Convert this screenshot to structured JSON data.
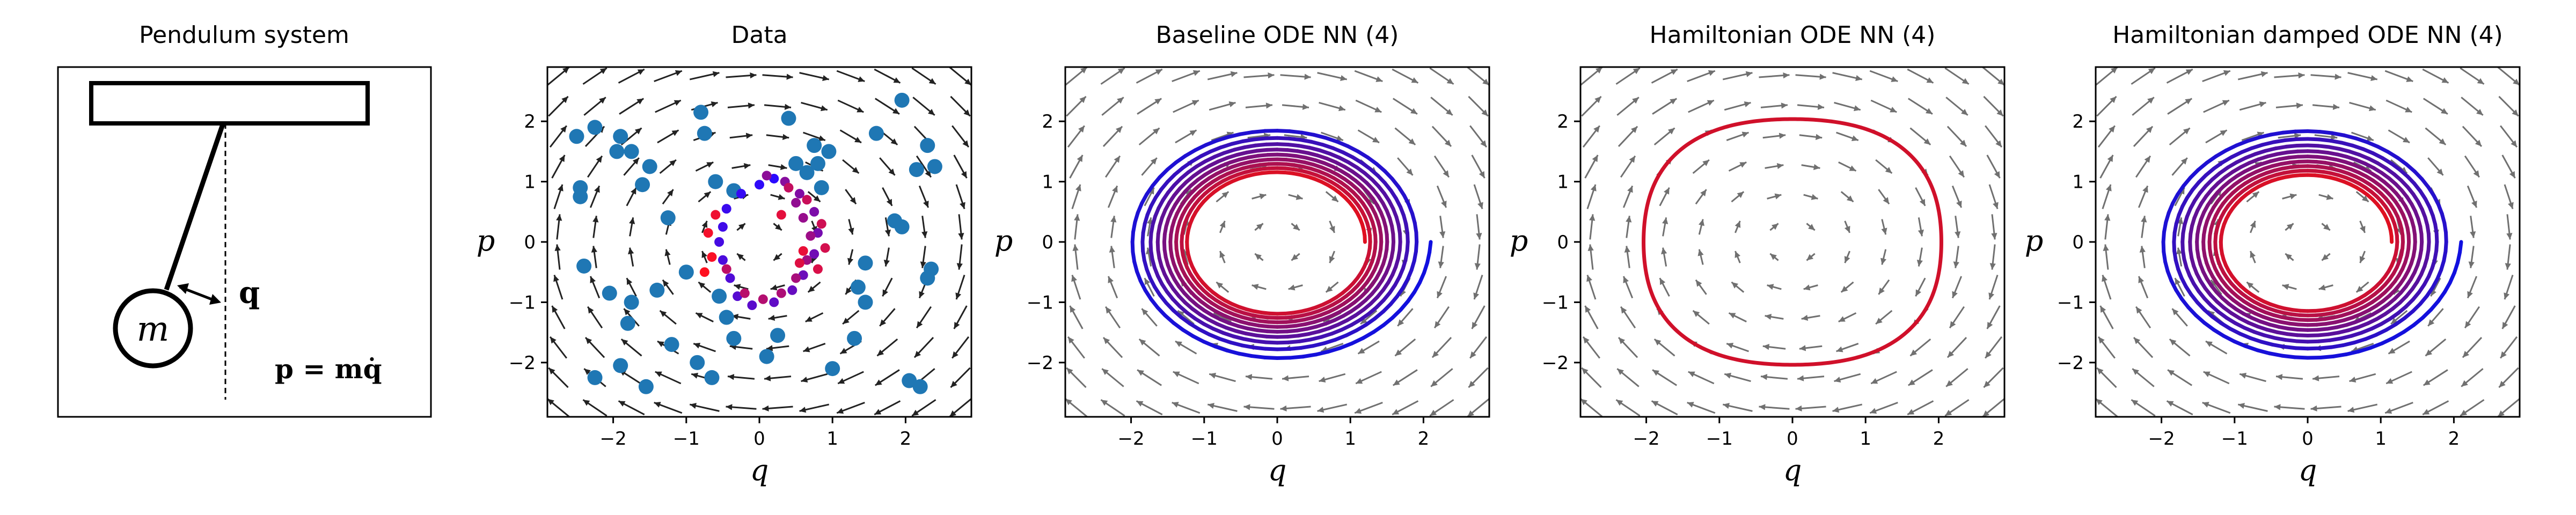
{
  "chart_data": [
    {
      "type": "diagram",
      "title": "Pendulum system",
      "labels": {
        "mass": "m",
        "coordinate": "q",
        "momentum_eq": "p = mq̇"
      }
    },
    {
      "type": "scatter",
      "title": "Data",
      "xlabel": "q",
      "ylabel": "p",
      "xlim": [
        -2.9,
        2.9
      ],
      "ylim": [
        -2.9,
        2.9
      ],
      "xticks": [
        "−2",
        "−1",
        "0",
        "1",
        "2"
      ],
      "yticks": [
        "−2",
        "−1",
        "0",
        "1",
        "2"
      ],
      "quiver": {
        "color": "#222222",
        "field": "(p, -q) rotation"
      },
      "series": [
        {
          "color": "#1f77b4",
          "points": [
            [
              -2.5,
              1.75
            ],
            [
              -2.25,
              1.9
            ],
            [
              -1.95,
              1.5
            ],
            [
              -1.9,
              1.75
            ],
            [
              -1.75,
              1.5
            ],
            [
              -2.45,
              0.9
            ],
            [
              -2.45,
              0.75
            ],
            [
              -1.5,
              1.25
            ],
            [
              -1.6,
              0.95
            ],
            [
              -1.25,
              0.4
            ],
            [
              -0.8,
              2.15
            ],
            [
              -0.75,
              1.8
            ],
            [
              -0.6,
              1.0
            ],
            [
              -0.35,
              0.85
            ],
            [
              0.4,
              2.05
            ],
            [
              0.5,
              1.3
            ],
            [
              0.65,
              1.15
            ],
            [
              0.75,
              1.6
            ],
            [
              0.8,
              1.3
            ],
            [
              0.95,
              1.5
            ],
            [
              0.85,
              0.9
            ],
            [
              1.6,
              1.8
            ],
            [
              1.95,
              2.35
            ],
            [
              2.15,
              1.2
            ],
            [
              2.3,
              1.6
            ],
            [
              2.4,
              1.25
            ],
            [
              1.85,
              0.35
            ],
            [
              1.95,
              0.25
            ],
            [
              2.35,
              -0.45
            ],
            [
              2.3,
              -0.6
            ],
            [
              1.45,
              -0.35
            ],
            [
              1.35,
              -0.75
            ],
            [
              1.45,
              -1.0
            ],
            [
              1.3,
              -1.6
            ],
            [
              1.0,
              -2.1
            ],
            [
              2.05,
              -2.3
            ],
            [
              2.2,
              -2.4
            ],
            [
              0.25,
              -1.55
            ],
            [
              0.1,
              -1.9
            ],
            [
              -0.85,
              -2.0
            ],
            [
              -0.65,
              -2.25
            ],
            [
              -1.2,
              -1.7
            ],
            [
              -1.8,
              -1.35
            ],
            [
              -1.9,
              -2.05
            ],
            [
              -2.25,
              -2.25
            ],
            [
              -1.55,
              -2.4
            ],
            [
              -2.4,
              -0.4
            ],
            [
              -2.05,
              -0.85
            ],
            [
              -1.75,
              -1.0
            ],
            [
              -1.4,
              -0.8
            ],
            [
              -1.0,
              -0.5
            ],
            [
              -0.55,
              -0.9
            ],
            [
              -0.45,
              -1.25
            ],
            [
              -0.35,
              -1.6
            ]
          ]
        },
        {
          "name_hidden": true,
          "color_from": "#2a0aff",
          "color_to": "#ff1020",
          "points": [
            [
              0.2,
              1.05
            ],
            [
              0.0,
              0.95
            ],
            [
              -0.25,
              0.8
            ],
            [
              -0.45,
              0.55
            ],
            [
              -0.5,
              0.25
            ],
            [
              -0.55,
              0.0
            ],
            [
              -0.5,
              -0.3
            ],
            [
              -0.4,
              -0.6
            ],
            [
              -0.3,
              -0.9
            ],
            [
              -0.1,
              -1.05
            ],
            [
              0.2,
              -1.0
            ],
            [
              0.45,
              -0.8
            ],
            [
              0.6,
              -0.55
            ],
            [
              0.75,
              -0.2
            ],
            [
              0.8,
              0.15
            ],
            [
              0.75,
              0.5
            ],
            [
              0.55,
              0.8
            ],
            [
              0.35,
              1.0
            ],
            [
              0.1,
              1.1
            ],
            [
              0.5,
              0.65
            ],
            [
              0.6,
              0.4
            ],
            [
              0.7,
              0.1
            ],
            [
              0.65,
              -0.3
            ],
            [
              0.5,
              -0.6
            ],
            [
              0.3,
              -0.85
            ],
            [
              0.05,
              -0.95
            ],
            [
              -0.2,
              -0.85
            ],
            [
              -0.45,
              -0.45
            ],
            [
              0.4,
              0.9
            ],
            [
              0.65,
              0.7
            ],
            [
              0.85,
              0.3
            ],
            [
              0.9,
              -0.1
            ],
            [
              0.8,
              -0.45
            ],
            [
              0.55,
              -0.35
            ],
            [
              0.3,
              0.45
            ],
            [
              0.6,
              -0.15
            ],
            [
              -0.6,
              0.45
            ],
            [
              -0.7,
              0.15
            ],
            [
              -0.65,
              -0.25
            ],
            [
              -0.75,
              -0.5
            ]
          ]
        }
      ]
    },
    {
      "type": "line",
      "title": "Baseline ODE NN (4)",
      "xlabel": "q",
      "ylabel": "p",
      "xlim": [
        -2.9,
        2.9
      ],
      "ylim": [
        -2.9,
        2.9
      ],
      "xticks": [
        "−2",
        "−1",
        "0",
        "1",
        "2"
      ],
      "yticks": [
        "−2",
        "−1",
        "0",
        "1",
        "2"
      ],
      "quiver": {
        "color": "#707070"
      },
      "trajectory": {
        "kind": "inward_spiral",
        "r_start": 2.1,
        "r_end": 1.2,
        "y_scale": 0.95,
        "color_from": "#1010e0",
        "color_to": "#e01020"
      }
    },
    {
      "type": "line",
      "title": "Hamiltonian ODE NN (4)",
      "xlabel": "q",
      "ylabel": "p",
      "xlim": [
        -2.9,
        2.9
      ],
      "ylim": [
        -2.9,
        2.9
      ],
      "xticks": [
        "−2",
        "−1",
        "0",
        "1",
        "2"
      ],
      "yticks": [
        "−2",
        "−1",
        "0",
        "1",
        "2"
      ],
      "quiver": {
        "color": "#707070"
      },
      "trajectory": {
        "kind": "closed_orbit",
        "radius": 2.1,
        "color": "#d0102a"
      }
    },
    {
      "type": "line",
      "title": "Hamiltonian damped ODE NN (4)",
      "xlabel": "q",
      "ylabel": "p",
      "xlim": [
        -2.9,
        2.9
      ],
      "ylim": [
        -2.9,
        2.9
      ],
      "xticks": [
        "−2",
        "−1",
        "0",
        "1",
        "2"
      ],
      "yticks": [
        "−2",
        "−1",
        "0",
        "1",
        "2"
      ],
      "quiver": {
        "color": "#707070"
      },
      "trajectory": {
        "kind": "inward_spiral",
        "r_start": 2.1,
        "r_end": 1.15,
        "y_scale": 0.95,
        "color_from": "#1010e0",
        "color_to": "#e01020"
      }
    }
  ]
}
